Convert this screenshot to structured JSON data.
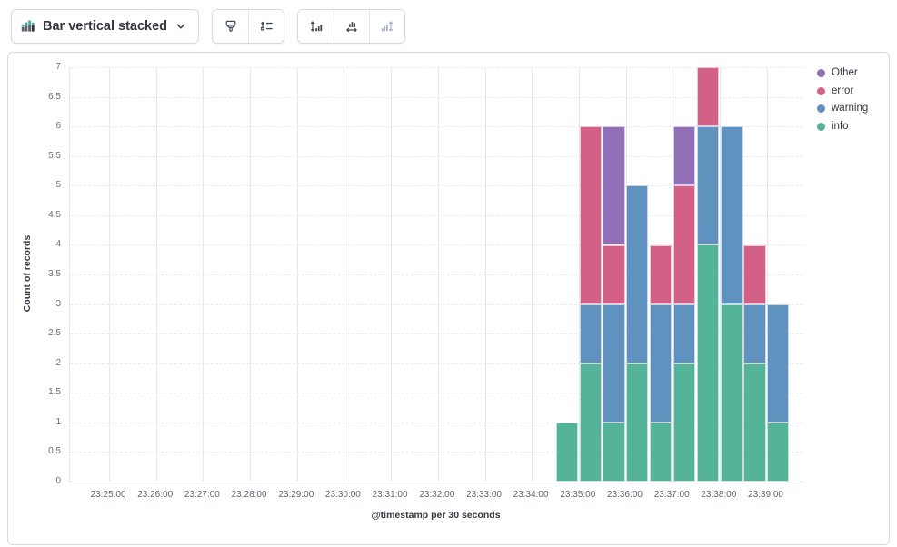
{
  "toolbar": {
    "chart_type_label": "Bar vertical stacked",
    "icons": {
      "chart_type": "bar-vertical-stacked-icon",
      "dropdown": "chevron-down-icon",
      "visual_options": "brush-icon",
      "legend_settings": "legend-icon",
      "left_axis": "axis-left-icon",
      "bottom_axis": "axis-bottom-icon",
      "right_axis": "axis-right-icon"
    },
    "right_axis_disabled": true
  },
  "legend": {
    "items": [
      {
        "label": "Other",
        "color": "#9170B8"
      },
      {
        "label": "error",
        "color": "#D36086"
      },
      {
        "label": "warning",
        "color": "#6092C0"
      },
      {
        "label": "info",
        "color": "#54B399"
      }
    ]
  },
  "chart_data": {
    "type": "bar",
    "mode": "stacked-vertical",
    "title": "",
    "xlabel": "@timestamp per 30 seconds",
    "ylabel": "Count of records",
    "ylim": [
      0,
      7
    ],
    "y_tick_step": 0.5,
    "grid": true,
    "legend_position": "right",
    "x_domain": [
      "23:24:10",
      "23:39:47"
    ],
    "x_ticks": [
      "23:25:00",
      "23:26:00",
      "23:27:00",
      "23:28:00",
      "23:29:00",
      "23:30:00",
      "23:31:00",
      "23:32:00",
      "23:33:00",
      "23:34:00",
      "23:35:00",
      "23:36:00",
      "23:37:00",
      "23:38:00",
      "23:39:00"
    ],
    "bucket_interval_seconds": 30,
    "categories": [
      "23:34:30",
      "23:35:00",
      "23:35:30",
      "23:36:00",
      "23:36:30",
      "23:37:00",
      "23:37:30",
      "23:38:00",
      "23:38:30",
      "23:39:00"
    ],
    "series": [
      {
        "name": "info",
        "color": "#54B399",
        "values": [
          1,
          2,
          1,
          2,
          1,
          2,
          4,
          3,
          2,
          1
        ]
      },
      {
        "name": "warning",
        "color": "#6092C0",
        "values": [
          0,
          1,
          2,
          3,
          2,
          1,
          2,
          3,
          1,
          2
        ]
      },
      {
        "name": "error",
        "color": "#D36086",
        "values": [
          0,
          3,
          1,
          0,
          1,
          2,
          1,
          0,
          1,
          0
        ]
      },
      {
        "name": "Other",
        "color": "#9170B8",
        "values": [
          0,
          0,
          2,
          0,
          0,
          1,
          0,
          0,
          0,
          0
        ]
      }
    ],
    "stack_order_bottom_to_top": [
      "info",
      "warning",
      "error",
      "Other"
    ],
    "totals": [
      1,
      6,
      6,
      5,
      4,
      6,
      7,
      6,
      4,
      3
    ]
  }
}
